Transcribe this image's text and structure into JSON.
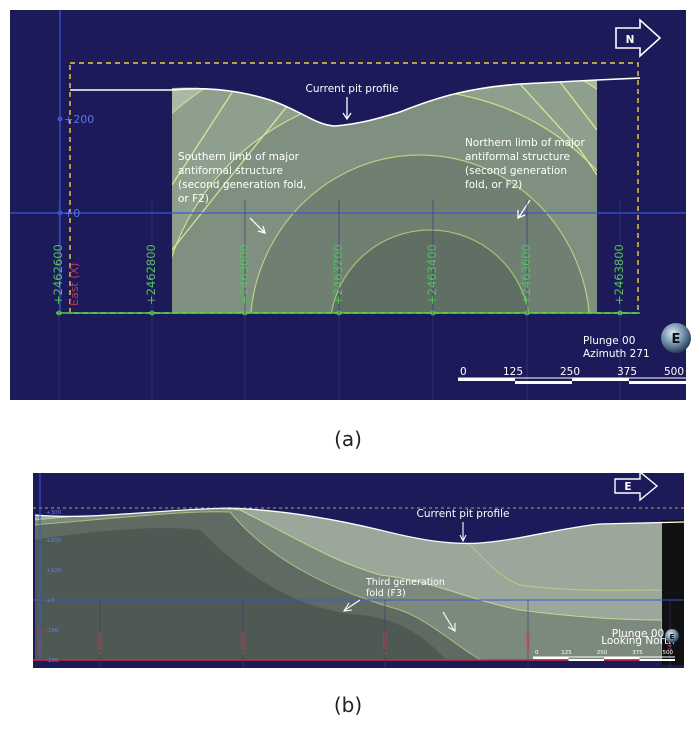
{
  "panel_a": {
    "compass": "N",
    "pit_label": "Current pit profile",
    "southern_limb": [
      "Southern limb of major",
      "antiformal structure",
      "(second generation fold,",
      "or F2)"
    ],
    "northern_limb": [
      "Northern limb of major",
      "antiformal structure",
      "(second generation",
      "fold, or F2)"
    ],
    "y_labels": [
      "+200",
      "+0"
    ],
    "x_labels": [
      "+2462600",
      "+2462800",
      "+2463000",
      "+2463200",
      "+2463400",
      "+2463600",
      "+2463800"
    ],
    "axis_label": "East (X)",
    "plunge": "Plunge 00",
    "azimuth": "Azimuth 271",
    "orientation_ball": "E",
    "scale": [
      "0",
      "125",
      "250",
      "375",
      "500"
    ],
    "caption": "(a)"
  },
  "panel_b": {
    "compass": "E",
    "pit_label": "Current pit profile",
    "fold_label": [
      "Third generation",
      "fold (F3)"
    ],
    "y_labels": [
      "+300",
      "+200",
      "+100",
      "+0",
      "-100",
      "-200"
    ],
    "x_labels": [
      "+242500",
      "+243000",
      "+243500",
      "+244000",
      "+244500"
    ],
    "axis_label": "North (Y)",
    "plunge": "Plunge 00",
    "view": "Looking North",
    "orientation_ball": "E",
    "scale": [
      "0",
      "125",
      "250",
      "375",
      "500"
    ],
    "caption": "(b)"
  }
}
